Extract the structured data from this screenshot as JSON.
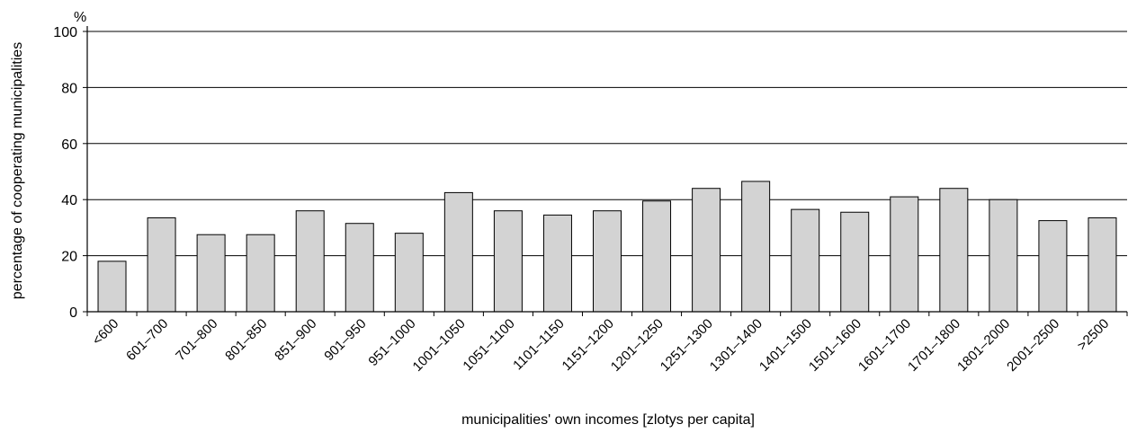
{
  "chart_data": {
    "type": "bar",
    "title": "",
    "xlabel": "municipalities' own incomes [zlotys per capita]",
    "ylabel": "percentage of cooperating municipalities",
    "yunit": "%",
    "ylim": [
      0,
      100
    ],
    "yticks": [
      0,
      20,
      40,
      60,
      80,
      100
    ],
    "grid": "horizontal",
    "categories": [
      "<600",
      "601–700",
      "701–800",
      "801–850",
      "851–900",
      "901–950",
      "951–1000",
      "1001–1050",
      "1051–1100",
      "1101–1150",
      "1151–1200",
      "1201–1250",
      "1251–1300",
      "1301–1400",
      "1401–1500",
      "1501–1600",
      "1601–1700",
      "1701–1800",
      "1801–2000",
      "2001–2500",
      ">2500"
    ],
    "values": [
      18,
      33.5,
      27.5,
      27.5,
      36,
      31.5,
      28,
      42.5,
      36,
      34.5,
      36,
      39.5,
      44,
      46.5,
      36.5,
      35.5,
      41,
      44,
      40,
      32.5,
      33.5
    ],
    "colors": {
      "bar_fill": "#d3d3d3",
      "bar_stroke": "#000000",
      "grid": "#000000"
    }
  }
}
